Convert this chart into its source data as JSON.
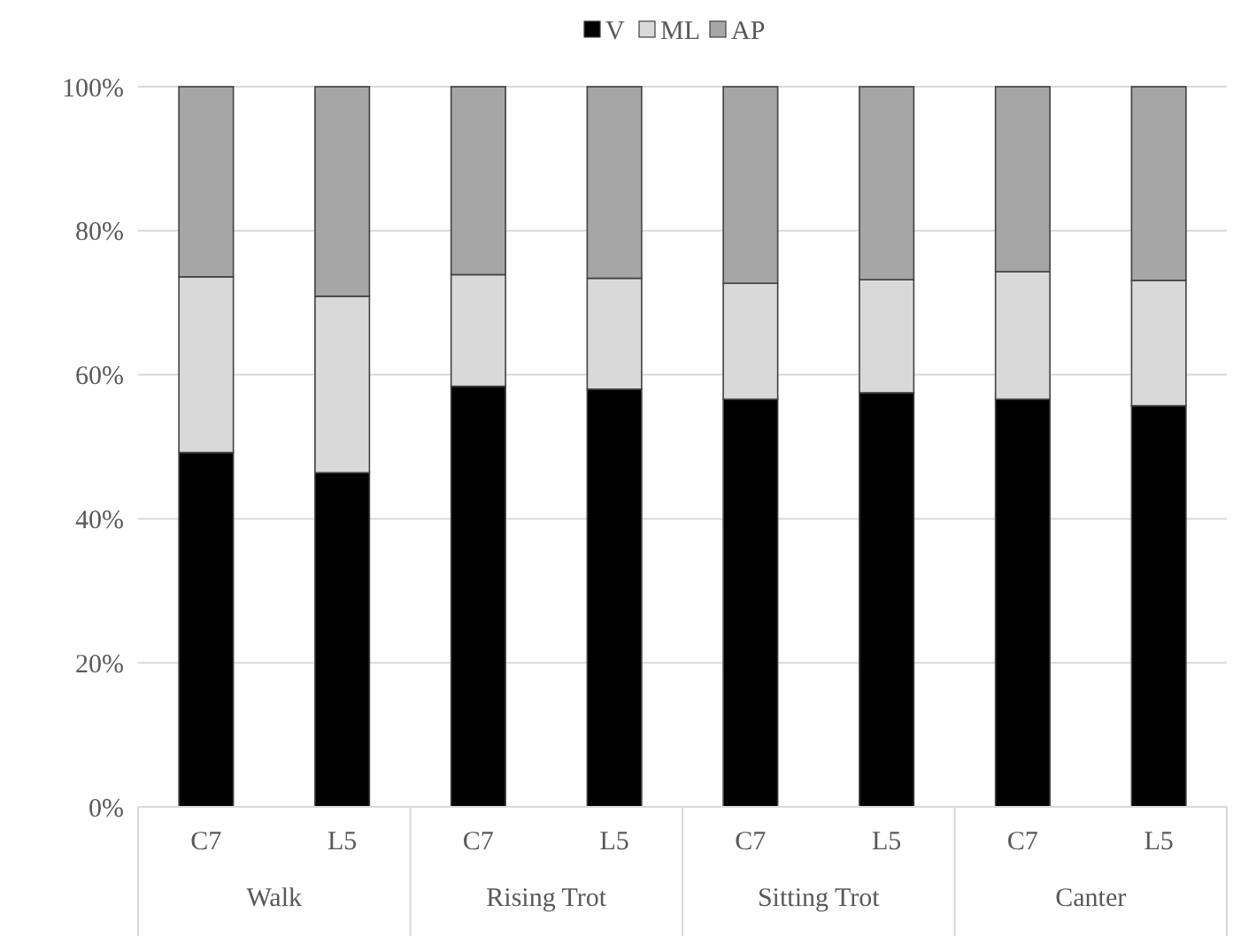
{
  "chart_data": {
    "type": "bar",
    "stacked": true,
    "categories": [
      "C7",
      "L5",
      "C7",
      "L5",
      "C7",
      "L5",
      "C7",
      "L5"
    ],
    "annotations": [
      "Walk",
      "Rising Trot",
      "Sitting Trot",
      "Canter"
    ],
    "series": [
      {
        "name": "V",
        "color": "#000000",
        "values": [
          49.2,
          46.4,
          58.4,
          58.0,
          56.6,
          57.5,
          56.6,
          55.7
        ]
      },
      {
        "name": "ML",
        "color": "#d9d9d9",
        "values": [
          24.4,
          24.5,
          15.5,
          15.4,
          16.1,
          15.7,
          17.7,
          17.4
        ]
      },
      {
        "name": "AP",
        "color": "#a6a6a6",
        "values": [
          26.4,
          29.1,
          26.1,
          26.6,
          27.3,
          26.8,
          25.7,
          26.9
        ]
      }
    ],
    "ylim": [
      0,
      100
    ],
    "yticks": [
      {
        "value": 0,
        "label": "0%"
      },
      {
        "value": 20,
        "label": "20%"
      },
      {
        "value": 40,
        "label": "40%"
      },
      {
        "value": 60,
        "label": "60%"
      },
      {
        "value": 80,
        "label": "80%"
      },
      {
        "value": 100,
        "label": "100%"
      }
    ],
    "grid": "y",
    "legend": "top"
  }
}
